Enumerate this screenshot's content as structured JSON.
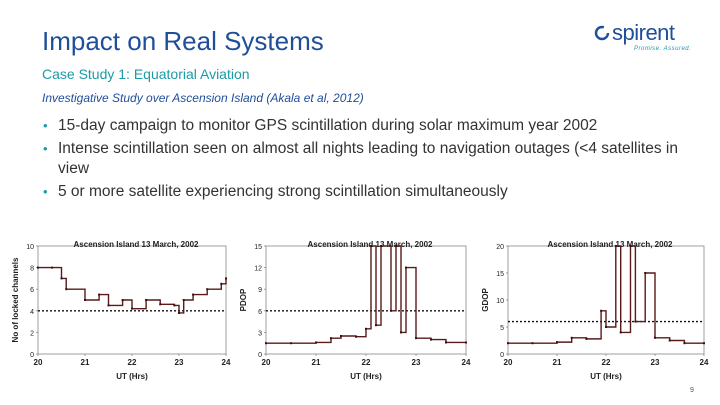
{
  "slide": {
    "title": "Impact on Real Systems",
    "subtitle": "Case Study 1: Equatorial Aviation",
    "study_line": "Investigative Study over Ascension Island (Akala et al, 2012)",
    "bullets": [
      "15-day campaign to monitor GPS scintillation during solar maximum year 2002",
      "Intense scintillation seen on almost all nights leading to navigation outages (<4 satellites in view",
      "5 or more satellite experiencing strong scintillation simultaneously"
    ],
    "page_number": "9"
  },
  "logo": {
    "name": "spirent",
    "tagline": "Promise. Assured."
  },
  "colors": {
    "title": "#1f4e9a",
    "accent": "#1a9ba8",
    "body_text": "#333333"
  },
  "chart_data": [
    {
      "type": "line",
      "title": "Ascension Island 13 March, 2002",
      "xlabel": "UT (Hrs)",
      "ylabel": "No of locked channels",
      "x_ticks": [
        "20",
        "21",
        "22",
        "23",
        "24"
      ],
      "y_ticks": [
        "0",
        "2",
        "4",
        "6",
        "8",
        "10"
      ],
      "xlim": [
        20,
        24
      ],
      "ylim": [
        0,
        10
      ],
      "threshold": 4,
      "series": [
        {
          "x": [
            20.0,
            20.3,
            20.5,
            20.6,
            21.0,
            21.3,
            21.5,
            21.8,
            22.0,
            22.3,
            22.6,
            22.9,
            23.0,
            23.1,
            23.3,
            23.6,
            23.9,
            24.0
          ],
          "y": [
            8,
            8,
            7,
            6,
            5,
            5.5,
            4.5,
            5,
            4.2,
            5,
            4.6,
            4.5,
            3.8,
            5,
            5.5,
            6,
            6.5,
            7
          ]
        }
      ]
    },
    {
      "type": "line",
      "title": "Ascension Island 13 March, 2002",
      "xlabel": "UT (Hrs)",
      "ylabel": "PDOP",
      "x_ticks": [
        "20",
        "21",
        "22",
        "23",
        "24"
      ],
      "y_ticks": [
        "0",
        "3",
        "6",
        "9",
        "12",
        "15"
      ],
      "xlim": [
        20,
        24
      ],
      "ylim": [
        0,
        15
      ],
      "threshold": 6,
      "series": [
        {
          "x": [
            20.0,
            20.5,
            21.0,
            21.3,
            21.5,
            21.8,
            22.0,
            22.1,
            22.2,
            22.3,
            22.5,
            22.6,
            22.7,
            22.8,
            23.0,
            23.3,
            23.6,
            24.0
          ],
          "y": [
            1.5,
            1.5,
            1.6,
            2.2,
            2.5,
            2.4,
            3.5,
            15,
            4,
            15,
            6,
            15,
            3,
            12,
            2.2,
            2,
            1.6,
            1.6
          ]
        }
      ]
    },
    {
      "type": "line",
      "title": "Ascension Island 13 March, 2002",
      "xlabel": "UT (Hrs)",
      "ylabel": "GDOP",
      "x_ticks": [
        "20",
        "21",
        "22",
        "23",
        "24"
      ],
      "y_ticks": [
        "0",
        "5",
        "10",
        "15",
        "20"
      ],
      "xlim": [
        20,
        24
      ],
      "ylim": [
        0,
        20
      ],
      "threshold": 6,
      "series": [
        {
          "x": [
            20.0,
            20.5,
            21.0,
            21.3,
            21.6,
            21.9,
            22.0,
            22.2,
            22.3,
            22.5,
            22.6,
            22.8,
            23.0,
            23.3,
            23.6,
            24.0
          ],
          "y": [
            2,
            2,
            2.2,
            3,
            2.8,
            8,
            5,
            20,
            4,
            20,
            6,
            15,
            3,
            2.5,
            2,
            2
          ]
        }
      ]
    }
  ]
}
